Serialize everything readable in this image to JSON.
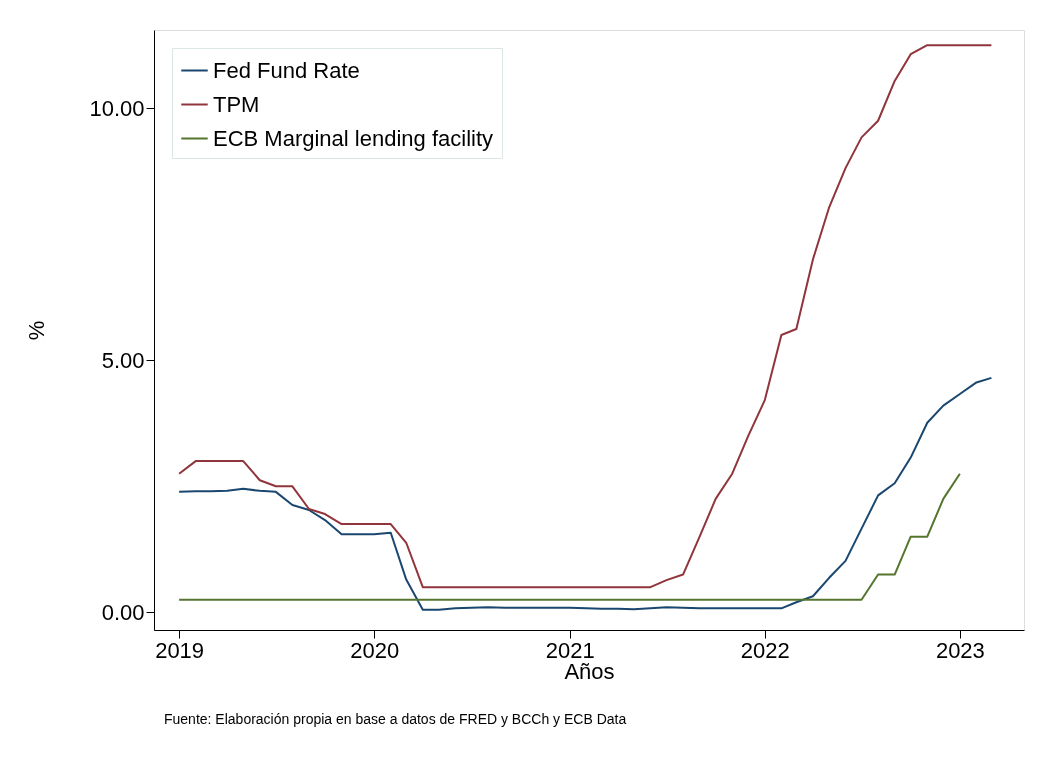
{
  "chart_data": {
    "type": "line",
    "xlabel": "Años",
    "ylabel": "%",
    "x": [
      "2019-01",
      "2019-02",
      "2019-03",
      "2019-04",
      "2019-05",
      "2019-06",
      "2019-07",
      "2019-08",
      "2019-09",
      "2019-10",
      "2019-11",
      "2019-12",
      "2020-01",
      "2020-02",
      "2020-03",
      "2020-04",
      "2020-05",
      "2020-06",
      "2020-07",
      "2020-08",
      "2020-09",
      "2020-10",
      "2020-11",
      "2020-12",
      "2021-01",
      "2021-02",
      "2021-03",
      "2021-04",
      "2021-05",
      "2021-06",
      "2021-07",
      "2021-08",
      "2021-09",
      "2021-10",
      "2021-11",
      "2021-12",
      "2022-01",
      "2022-02",
      "2022-03",
      "2022-04",
      "2022-05",
      "2022-06",
      "2022-07",
      "2022-08",
      "2022-09",
      "2022-10",
      "2022-11",
      "2022-12",
      "2023-01",
      "2023-02",
      "2023-03"
    ],
    "series": [
      {
        "name": "Fed Fund Rate",
        "color": "#1a476f",
        "values": [
          2.39,
          2.4,
          2.4,
          2.41,
          2.45,
          2.41,
          2.39,
          2.13,
          2.03,
          1.83,
          1.55,
          1.55,
          1.55,
          1.58,
          0.65,
          0.05,
          0.05,
          0.08,
          0.09,
          0.1,
          0.09,
          0.09,
          0.09,
          0.09,
          0.09,
          0.08,
          0.07,
          0.07,
          0.06,
          0.08,
          0.1,
          0.09,
          0.08,
          0.08,
          0.08,
          0.08,
          0.08,
          0.08,
          0.2,
          0.32,
          0.68,
          1.02,
          1.66,
          2.32,
          2.56,
          3.07,
          3.76,
          4.1,
          4.33,
          4.56,
          4.65
        ]
      },
      {
        "name": "TPM",
        "color": "#90353b",
        "values": [
          2.75,
          3.0,
          3.0,
          3.0,
          3.0,
          2.62,
          2.5,
          2.5,
          2.05,
          1.95,
          1.75,
          1.75,
          1.75,
          1.75,
          1.38,
          0.5,
          0.5,
          0.5,
          0.5,
          0.5,
          0.5,
          0.5,
          0.5,
          0.5,
          0.5,
          0.5,
          0.5,
          0.5,
          0.5,
          0.5,
          0.64,
          0.75,
          1.5,
          2.25,
          2.75,
          3.5,
          4.21,
          5.5,
          5.62,
          7.0,
          8.02,
          8.81,
          9.42,
          9.75,
          10.54,
          11.07,
          11.25,
          11.25,
          11.25,
          11.25,
          11.25
        ]
      },
      {
        "name": "ECB Marginal lending facility",
        "color": "#55752f",
        "values": [
          0.25,
          0.25,
          0.25,
          0.25,
          0.25,
          0.25,
          0.25,
          0.25,
          0.25,
          0.25,
          0.25,
          0.25,
          0.25,
          0.25,
          0.25,
          0.25,
          0.25,
          0.25,
          0.25,
          0.25,
          0.25,
          0.25,
          0.25,
          0.25,
          0.25,
          0.25,
          0.25,
          0.25,
          0.25,
          0.25,
          0.25,
          0.25,
          0.25,
          0.25,
          0.25,
          0.25,
          0.25,
          0.25,
          0.25,
          0.25,
          0.25,
          0.25,
          0.25,
          0.75,
          0.75,
          1.5,
          1.5,
          2.25,
          2.75,
          null,
          null
        ]
      }
    ],
    "xlim": [
      "2018-11-15",
      "2023-05-01"
    ],
    "xticks": [
      "2019",
      "2020",
      "2021",
      "2022",
      "2023"
    ],
    "ylim": [
      -0.35,
      11.55
    ],
    "yticks": [
      {
        "value": 0,
        "label": "0.00"
      },
      {
        "value": 5,
        "label": "5.00"
      },
      {
        "value": 10,
        "label": "10.00"
      }
    ],
    "grid": false,
    "legend": "top left",
    "line_style": "solid",
    "marker": "none",
    "annotations": [
      "Fuente: Elaboración propia en base a datos de FRED y BCCh y ECB Data"
    ]
  }
}
